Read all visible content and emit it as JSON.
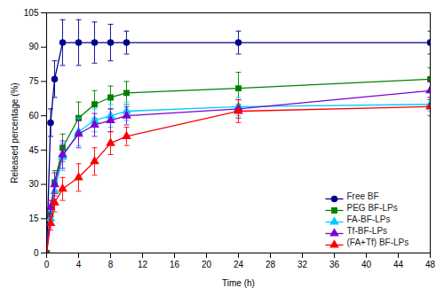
{
  "chart_data": {
    "type": "line",
    "xlabel": "Time (h)",
    "ylabel": "Released percentage (%)",
    "xlim": [
      0,
      48
    ],
    "ylim": [
      0,
      105
    ],
    "xticks": [
      0,
      4,
      8,
      12,
      16,
      20,
      24,
      28,
      32,
      36,
      40,
      44,
      48
    ],
    "yticks": [
      0,
      15,
      30,
      45,
      60,
      75,
      90,
      105
    ],
    "grid": false,
    "legend": "lower right",
    "x": [
      0,
      0.5,
      1,
      2,
      4,
      6,
      8,
      10,
      24,
      48
    ],
    "series": [
      {
        "name": "Free BF",
        "color": "#00008B",
        "marker": "circle",
        "values": [
          0,
          57,
          76,
          92,
          92,
          92,
          92,
          92,
          92,
          92
        ],
        "yerr": [
          0,
          6,
          8,
          10,
          10,
          9,
          8,
          5,
          5,
          5
        ]
      },
      {
        "name": "PEG BF-LPs",
        "color": "#008000",
        "marker": "square",
        "values": [
          0,
          17,
          31,
          46,
          59,
          65,
          68,
          70,
          72,
          76
        ],
        "yerr": [
          0,
          3,
          5,
          6,
          7,
          6,
          5,
          5,
          7,
          5
        ]
      },
      {
        "name": "FA-BF-LPs",
        "color": "#00CCFF",
        "marker": "triangle",
        "values": [
          0,
          15,
          27,
          42,
          53,
          58,
          60,
          62,
          64,
          65
        ],
        "yerr": [
          0,
          3,
          5,
          6,
          6,
          5,
          5,
          4,
          4,
          3
        ]
      },
      {
        "name": "Tf-BF-LPs",
        "color": "#7B00D4",
        "marker": "triangle",
        "values": [
          0,
          20,
          30,
          43,
          52,
          56,
          58,
          60,
          63,
          71
        ],
        "yerr": [
          0,
          3,
          5,
          6,
          6,
          5,
          5,
          4,
          4,
          4
        ]
      },
      {
        "name": "(FA+Tf) BF-LPs",
        "color": "#FF0000",
        "marker": "triangle",
        "values": [
          0,
          13,
          22,
          28,
          33,
          40,
          48,
          51,
          62,
          64
        ],
        "yerr": [
          0,
          3,
          4,
          5,
          6,
          6,
          5,
          4,
          5,
          4
        ]
      }
    ]
  }
}
